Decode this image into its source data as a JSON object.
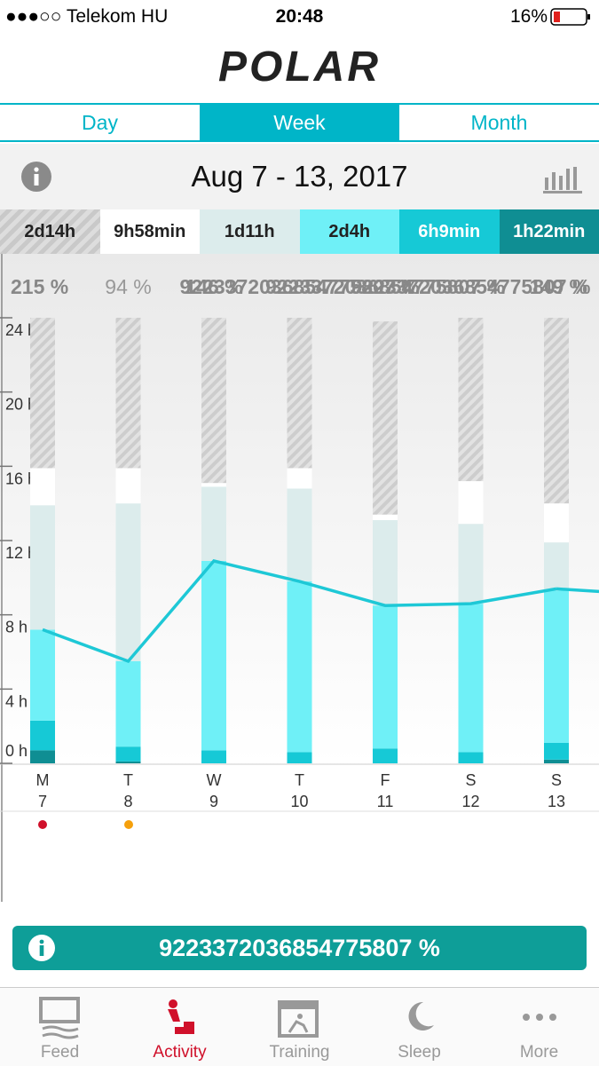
{
  "status_bar": {
    "carrier": "●●●○○ Telekom HU",
    "time": "20:48",
    "battery": "16%"
  },
  "logo": "POLAR",
  "tabs": [
    "Day",
    "Week",
    "Month"
  ],
  "date_range": "Aug 7 - 13, 2017",
  "summary": [
    "2d14h",
    "9h58min",
    "1d11h",
    "2d4h",
    "6h9min",
    "1h22min"
  ],
  "day_percentages": [
    "215 %",
    "94 %",
    "146 %",
    "9223372036854775807 %",
    "9223372036854775807 %",
    "9223372036854775807 %",
    "149 %"
  ],
  "chart_data": {
    "type": "bar",
    "stacked": true,
    "categories": [
      "M",
      "T",
      "W",
      "T",
      "F",
      "S",
      "S"
    ],
    "dates": [
      "7",
      "8",
      "9",
      "10",
      "11",
      "12",
      "13"
    ],
    "series": [
      {
        "color": "#0f8e93",
        "values": [
          0.7,
          0.1,
          0,
          0,
          0,
          0,
          0.2
        ]
      },
      {
        "color": "#16c9d6",
        "values": [
          1.6,
          0.8,
          0.7,
          0.6,
          0.8,
          0.6,
          0.9
        ]
      },
      {
        "color": "#6ff0f7",
        "values": [
          4.9,
          4.6,
          10.2,
          9.2,
          7.7,
          8.0,
          8.2
        ]
      },
      {
        "color": "#dcecec",
        "values": [
          6.7,
          8.5,
          4.0,
          5.0,
          4.6,
          4.3,
          2.6
        ]
      },
      {
        "color": "#ffffff",
        "values": [
          2.0,
          1.9,
          0.2,
          1.1,
          0.3,
          2.3,
          2.1
        ]
      },
      {
        "color": "hatched",
        "values": [
          8.1,
          8.1,
          8.9,
          8.1,
          10.4,
          8.8,
          10.0
        ]
      }
    ],
    "line": {
      "color": "#1ec8d6",
      "values": [
        7.2,
        5.5,
        10.9,
        9.8,
        8.5,
        8.6,
        9.4
      ]
    },
    "ylim": [
      0,
      24
    ],
    "yticks": [
      {
        "value": 0,
        "label": "0 h"
      },
      {
        "value": 4,
        "label": "4 h"
      },
      {
        "value": 8,
        "label": "8 h"
      },
      {
        "value": 12,
        "label": "12 h"
      },
      {
        "value": 16,
        "label": "16 h"
      },
      {
        "value": 20,
        "label": "20 h"
      },
      {
        "value": 24,
        "label": "24 h"
      }
    ]
  },
  "banner": "9223372036854775807 %",
  "nav": [
    "Feed",
    "Activity",
    "Training",
    "Sleep",
    "More"
  ]
}
